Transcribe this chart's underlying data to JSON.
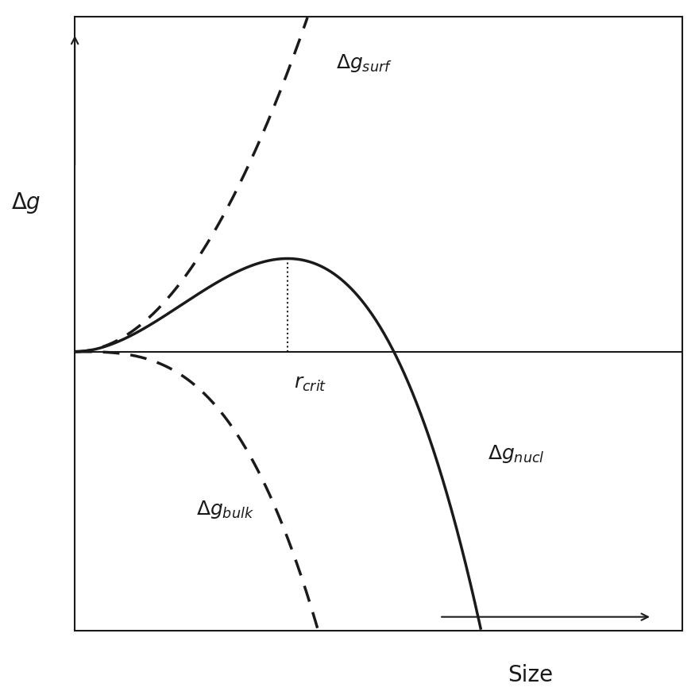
{
  "title": "",
  "xlabel": "Size",
  "ylabel": "Δg",
  "background_color": "#ffffff",
  "line_color": "#1a1a1a",
  "axis_color": "#1a1a1a",
  "x_range": [
    0,
    10
  ],
  "y_range": [
    -1.5,
    1.8
  ],
  "r_crit": 3.5,
  "label_surf": "Δg$_{surf}$",
  "label_bulk": "Δg$_{bulk}$",
  "label_nucl": "Δg$_{nucl}$",
  "label_rcrit": "r$_{crit}$",
  "surf_color": "#1a1a1a",
  "bulk_color": "#1a1a1a",
  "nucl_color": "#1a1a1a"
}
